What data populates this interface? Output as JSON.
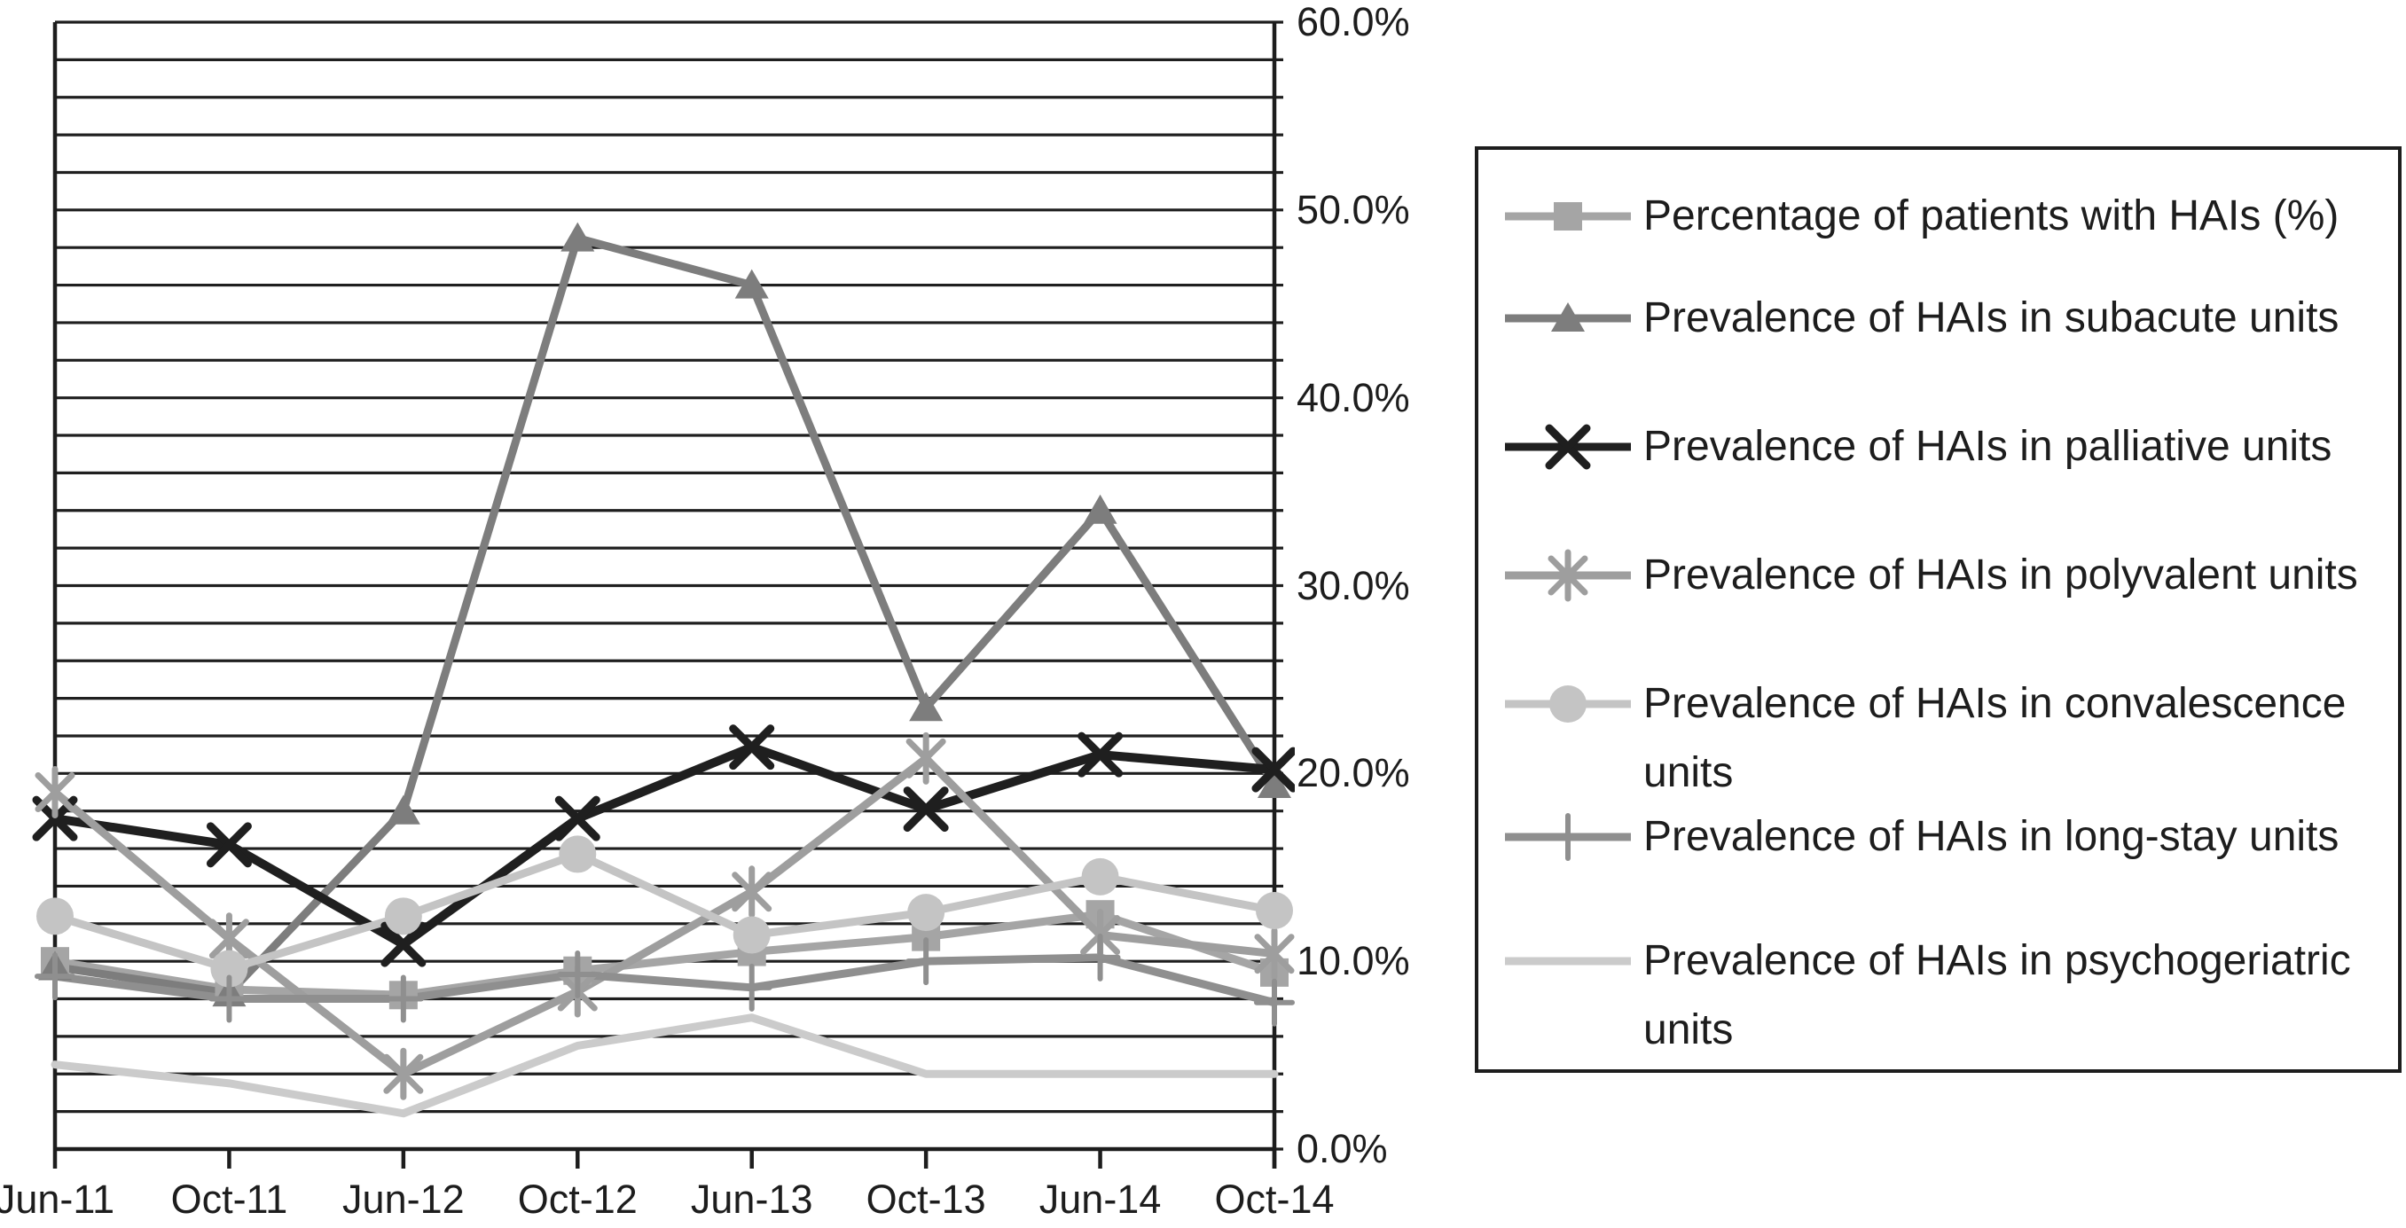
{
  "chart_data": {
    "type": "line",
    "categories": [
      "Jun-11",
      "Oct-11",
      "Jun-12",
      "Oct-12",
      "Jun-13",
      "Oct-13",
      "Jun-14",
      "Oct-14"
    ],
    "series": [
      {
        "name": "Percentage of patients with HAIs (%)",
        "marker": "square",
        "color": "#a5a5a5",
        "values": [
          10.0,
          8.5,
          8.2,
          9.5,
          10.5,
          11.3,
          12.5,
          9.4
        ]
      },
      {
        "name": "Prevalence of HAIs in subacute units",
        "marker": "triangle",
        "color": "#7d7d7d",
        "values": [
          9.7,
          8.3,
          18.0,
          48.5,
          46.0,
          23.5,
          34.0,
          19.4
        ]
      },
      {
        "name": "Prevalence of HAIs in palliative units",
        "marker": "x",
        "color": "#1f1f1f",
        "values": [
          17.6,
          16.2,
          10.9,
          17.6,
          21.4,
          18.1,
          21.0,
          20.2
        ]
      },
      {
        "name": "Prevalence of HAIs in polyvalent units",
        "marker": "asterisk",
        "color": "#9e9e9e",
        "values": [
          19.0,
          11.2,
          4.0,
          8.4,
          13.7,
          20.8,
          11.4,
          10.4
        ]
      },
      {
        "name": "Prevalence of HAIs in convalescence units",
        "marker": "circle",
        "color": "#c4c4c4",
        "values": [
          12.4,
          9.6,
          12.4,
          15.7,
          11.4,
          12.6,
          14.5,
          12.7
        ]
      },
      {
        "name": "Prevalence of HAIs in long-stay units",
        "marker": "plus",
        "color": "#8f8f8f",
        "values": [
          9.2,
          8.0,
          8.0,
          9.3,
          8.6,
          10.0,
          10.2,
          7.8
        ]
      },
      {
        "name": "Prevalence of HAIs in psychogeriatric units",
        "marker": "none",
        "color": "#cbcbcb",
        "values": [
          4.5,
          3.5,
          1.9,
          5.5,
          7.0,
          4.0,
          4.0,
          4.0
        ]
      }
    ],
    "xlabel": "",
    "ylabel": "",
    "yaxis": {
      "min": 0,
      "max": 60,
      "minor_step": 2,
      "major_step": 10,
      "side": "right",
      "labels": [
        "60.0%",
        "50.0%",
        "40.0%",
        "30.0%",
        "20.0%",
        "10.0%",
        "0.0%"
      ],
      "label_values": [
        60,
        50,
        40,
        30,
        20,
        10,
        0
      ]
    },
    "grid": "horizontal-minor-on",
    "legend_position": "right",
    "colors": {
      "grid": "#1f1f1f",
      "axis": "#1d1d1d",
      "text": "#1d1d1d",
      "background": "#ffffff"
    }
  }
}
